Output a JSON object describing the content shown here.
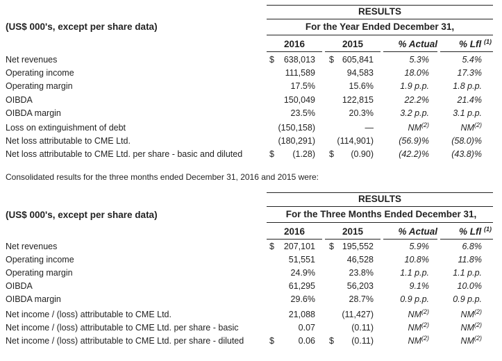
{
  "table1": {
    "results_label": "RESULTS",
    "unit_label": "(US$ 000's, except per share data)",
    "period_label": "For the Year Ended December 31,",
    "col_2016": "2016",
    "col_2015": "2015",
    "col_actual": "% Actual",
    "col_lfl": "% Lfl",
    "col_lfl_note": "(1)",
    "rows": [
      {
        "label": "Net revenues",
        "s16": "$",
        "v16": "638,013",
        "s15": "$",
        "v15": "605,841",
        "act": "5.3%",
        "act_note": "",
        "lfl": "5.4%",
        "lfl_note": ""
      },
      {
        "label": "Operating income",
        "s16": "",
        "v16": "111,589",
        "s15": "",
        "v15": "94,583",
        "act": "18.0%",
        "act_note": "",
        "lfl": "17.3%",
        "lfl_note": ""
      },
      {
        "label": "Operating margin",
        "s16": "",
        "v16": "17.5%",
        "s15": "",
        "v15": "15.6%",
        "act": "1.9 p.p.",
        "act_note": "",
        "lfl": "1.8 p.p.",
        "lfl_note": ""
      },
      {
        "label": "OIBDA",
        "s16": "",
        "v16": "150,049",
        "s15": "",
        "v15": "122,815",
        "act": "22.2%",
        "act_note": "",
        "lfl": "21.4%",
        "lfl_note": ""
      },
      {
        "label": "OIBDA margin",
        "s16": "",
        "v16": "23.5%",
        "s15": "",
        "v15": "20.3%",
        "act": "3.2 p.p.",
        "act_note": "",
        "lfl": "3.1 p.p.",
        "lfl_note": ""
      },
      {
        "label": "Loss on extinguishment of debt",
        "s16": "",
        "v16": "(150,158)",
        "s15": "",
        "v15": "—",
        "act": "NM",
        "act_note": "(2)",
        "lfl": "NM",
        "lfl_note": "(2)"
      },
      {
        "label": "Net loss attributable to CME Ltd.",
        "s16": "",
        "v16": "(180,291)",
        "s15": "",
        "v15": "(114,901)",
        "act": "(56.9)%",
        "act_note": "",
        "lfl": "(58.0)%",
        "lfl_note": ""
      },
      {
        "label": "Net loss attributable to CME Ltd. per share - basic and diluted",
        "s16": "$",
        "v16": "(1.28)",
        "s15": "$",
        "v15": "(0.90)",
        "act": "(42.2)%",
        "act_note": "",
        "lfl": "(43.8)%",
        "lfl_note": ""
      }
    ]
  },
  "intertext": "Consolidated results for the three months ended December 31, 2016 and 2015 were:",
  "table2": {
    "results_label": "RESULTS",
    "unit_label": "(US$ 000's, except per share data)",
    "period_label": "For the Three Months Ended December 31,",
    "col_2016": "2016",
    "col_2015": "2015",
    "col_actual": "% Actual",
    "col_lfl": "% Lfl",
    "col_lfl_note": "(1)",
    "rows": [
      {
        "label": "Net revenues",
        "s16": "$",
        "v16": "207,101",
        "s15": "$",
        "v15": "195,552",
        "act": "5.9%",
        "act_note": "",
        "lfl": "6.8%",
        "lfl_note": ""
      },
      {
        "label": "Operating income",
        "s16": "",
        "v16": "51,551",
        "s15": "",
        "v15": "46,528",
        "act": "10.8%",
        "act_note": "",
        "lfl": "11.8%",
        "lfl_note": ""
      },
      {
        "label": "Operating margin",
        "s16": "",
        "v16": "24.9%",
        "s15": "",
        "v15": "23.8%",
        "act": "1.1 p.p.",
        "act_note": "",
        "lfl": "1.1 p.p.",
        "lfl_note": ""
      },
      {
        "label": "OIBDA",
        "s16": "",
        "v16": "61,295",
        "s15": "",
        "v15": "56,203",
        "act": "9.1%",
        "act_note": "",
        "lfl": "10.0%",
        "lfl_note": ""
      },
      {
        "label": "OIBDA margin",
        "s16": "",
        "v16": "29.6%",
        "s15": "",
        "v15": "28.7%",
        "act": "0.9 p.p.",
        "act_note": "",
        "lfl": "0.9 p.p.",
        "lfl_note": ""
      },
      {
        "label": "Net income / (loss) attributable to CME Ltd.",
        "s16": "",
        "v16": "21,088",
        "s15": "",
        "v15": "(11,427)",
        "act": "NM",
        "act_note": "(2)",
        "lfl": "NM",
        "lfl_note": "(2)"
      },
      {
        "label": "Net income / (loss) attributable to CME Ltd. per share - basic",
        "s16": "",
        "v16": "0.07",
        "s15": "",
        "v15": "(0.11)",
        "act": "NM",
        "act_note": "(2)",
        "lfl": "NM",
        "lfl_note": "(2)"
      },
      {
        "label": "Net income / (loss) attributable to CME Ltd. per share - diluted",
        "s16": "$",
        "v16": "0.06",
        "s15": "$",
        "v15": "(0.11)",
        "act": "NM",
        "act_note": "(2)",
        "lfl": "NM",
        "lfl_note": "(2)"
      }
    ]
  }
}
